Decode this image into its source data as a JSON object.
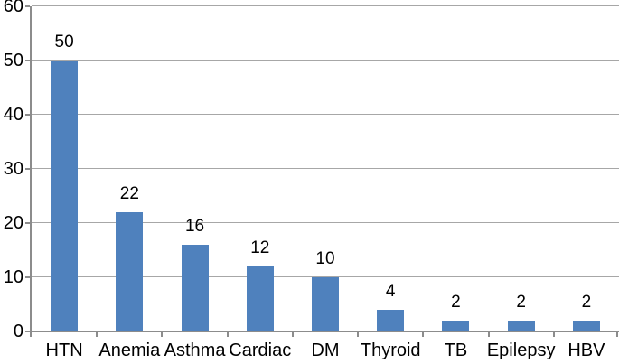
{
  "chart_data": {
    "type": "bar",
    "categories": [
      "HTN",
      "Anemia",
      "Asthma",
      "Cardiac",
      "DM",
      "Thyroid",
      "TB",
      "Epilepsy",
      "HBV"
    ],
    "values": [
      50,
      22,
      16,
      12,
      10,
      4,
      2,
      2,
      2
    ],
    "data_labels": [
      "50",
      "22",
      "16",
      "12",
      "10",
      "4",
      "2",
      "2",
      "2"
    ],
    "title": "",
    "xlabel": "",
    "ylabel": "",
    "ylim": [
      0,
      60
    ],
    "yticks": [
      0,
      10,
      20,
      30,
      40,
      50,
      60
    ],
    "ytick_labels": [
      "0",
      "10",
      "20",
      "30",
      "40",
      "50",
      "60"
    ],
    "grid": true,
    "legend_position": "none",
    "colors": {
      "bar": "#4F81BD",
      "gridline": "#A7A7A7",
      "axis": "#8C8C8C",
      "text": "#000000",
      "background": "#FFFFFF"
    }
  }
}
